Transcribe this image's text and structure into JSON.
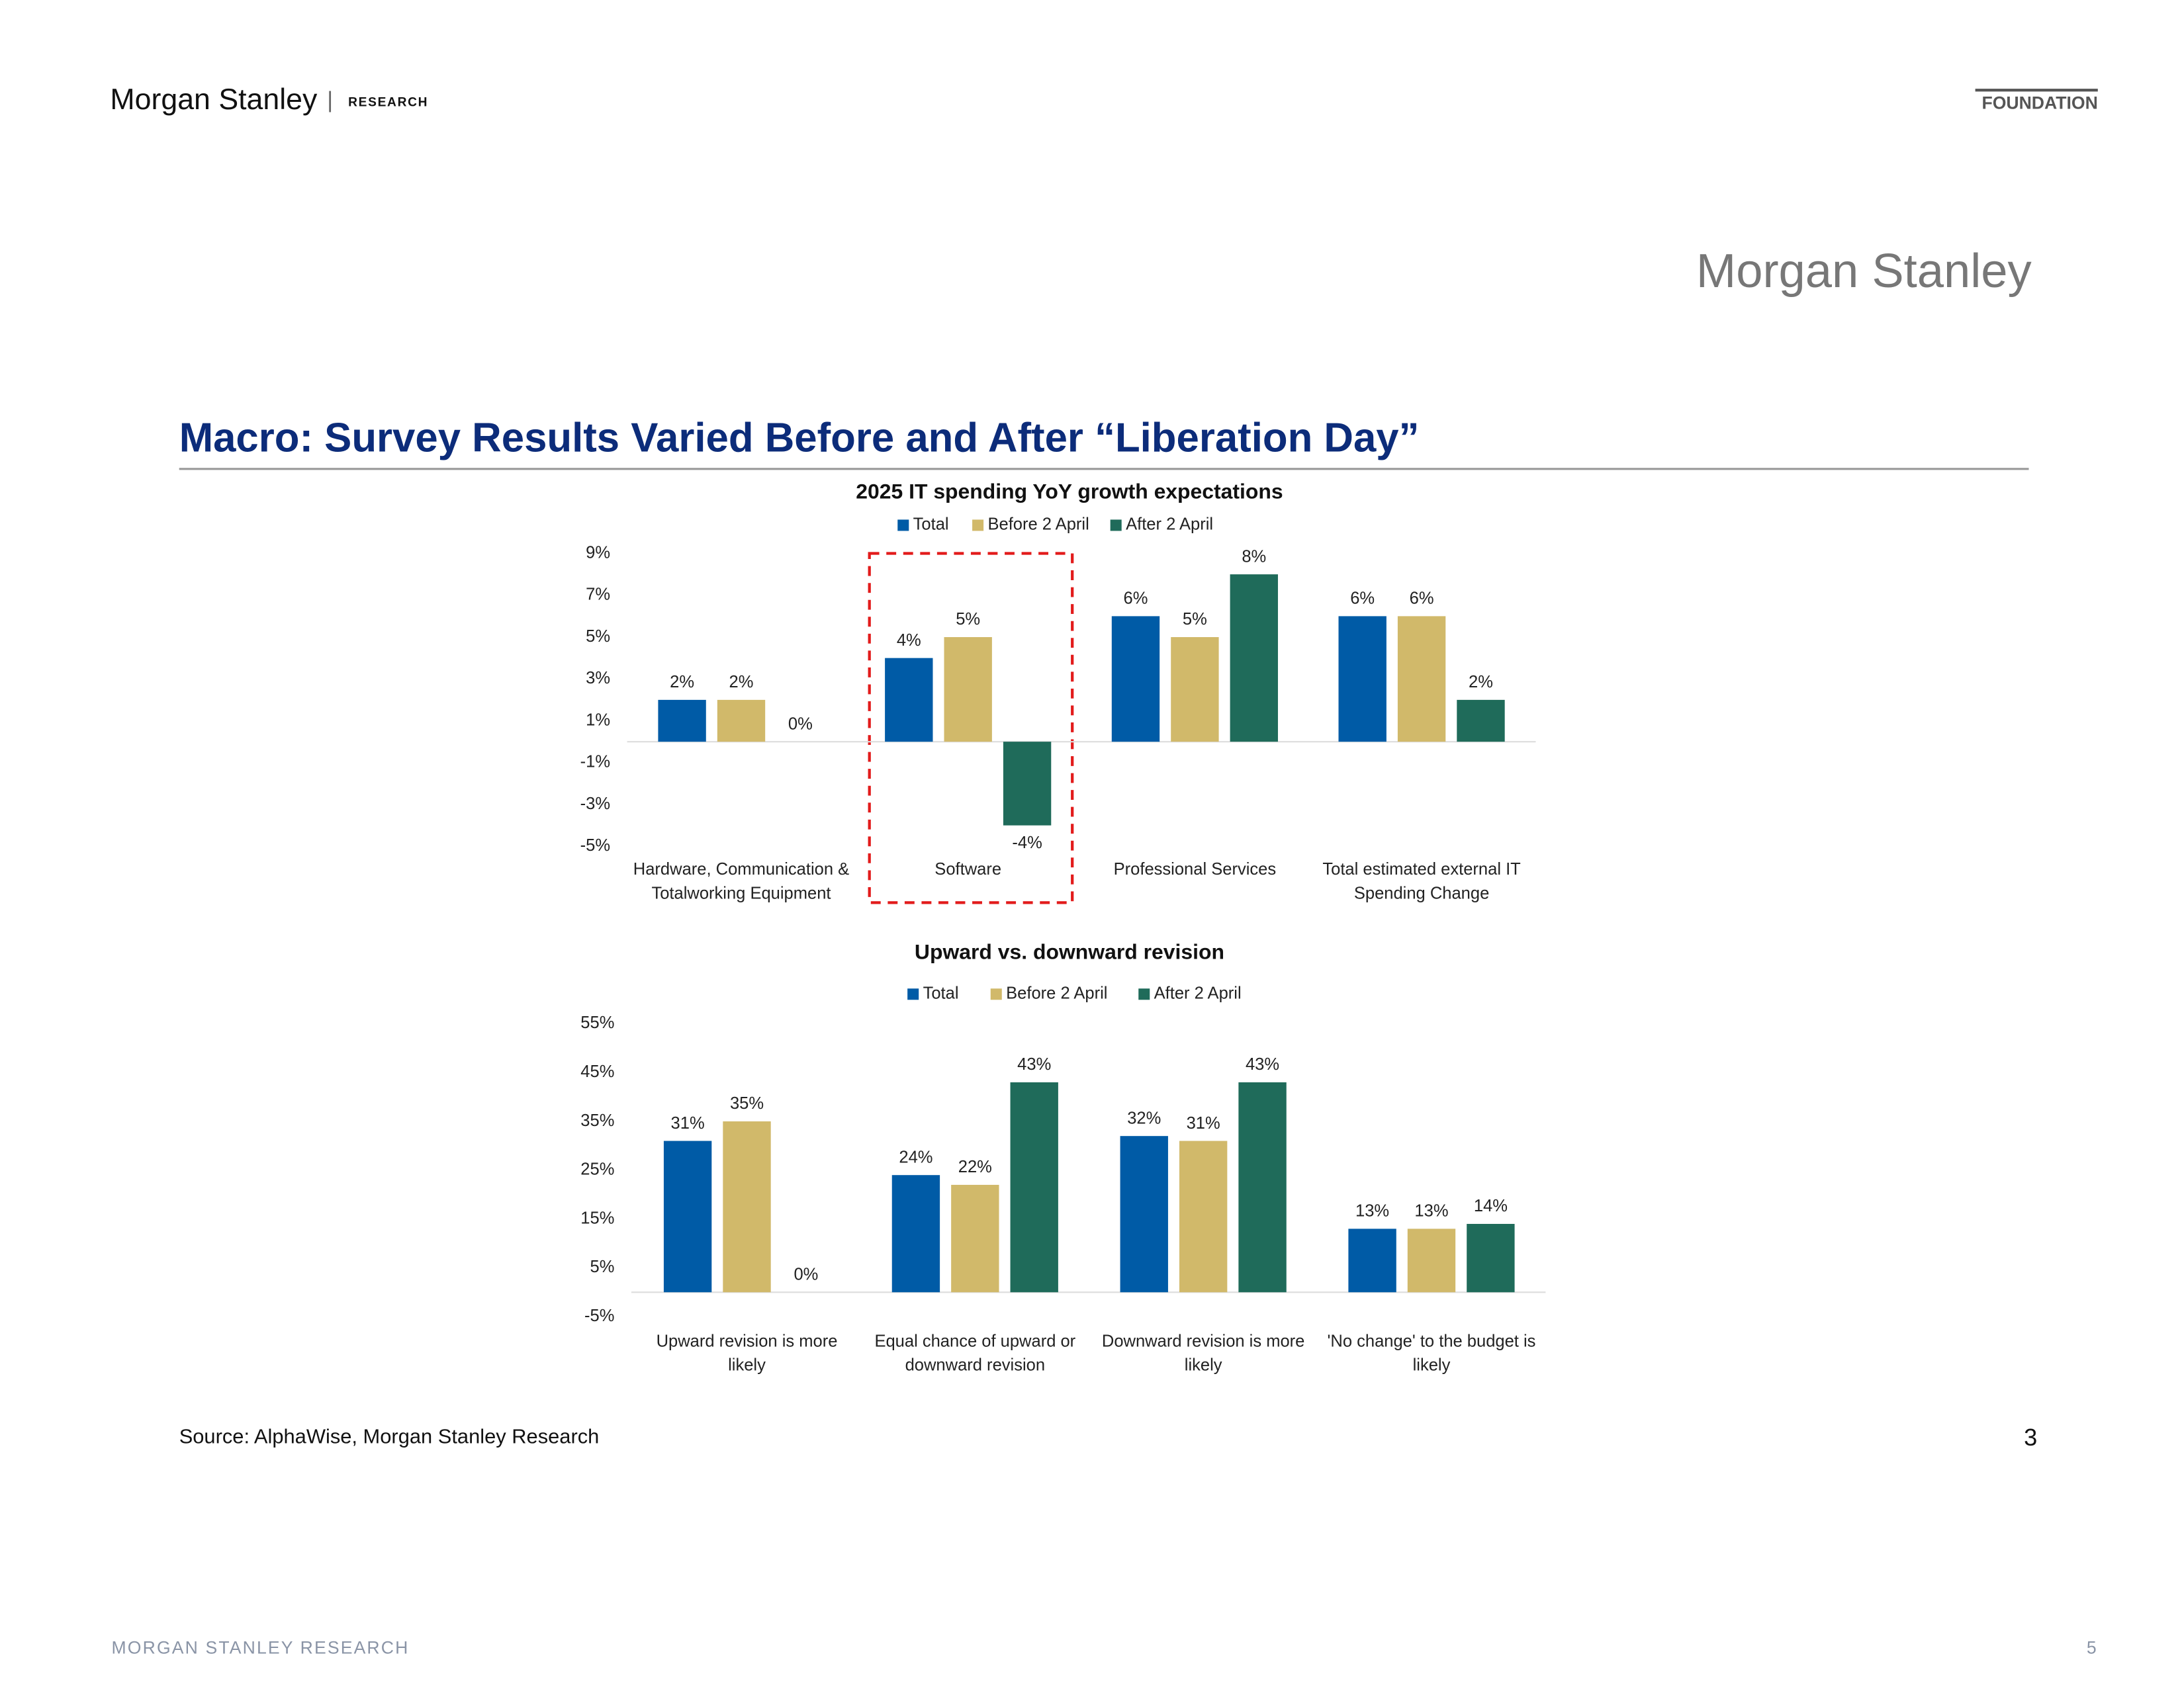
{
  "header": {
    "brand": "Morgan Stanley",
    "separator": "|",
    "section": "RESEARCH",
    "tag": "FOUNDATION",
    "logo": "Morgan Stanley"
  },
  "title": "Macro: Survey Results Varied Before and After “Liberation Day”",
  "chart_data": [
    {
      "type": "bar",
      "title": "2025 IT spending YoY growth expectations",
      "categories": [
        [
          "Hardware, Communication &",
          "Totalworking Equipment"
        ],
        [
          "Software"
        ],
        [
          "Professional Services"
        ],
        [
          "Total estimated external IT",
          "Spending Change"
        ]
      ],
      "series": [
        {
          "name": "Total",
          "color": "#005ba6",
          "values": [
            2,
            4,
            6,
            6
          ],
          "value_labels": [
            "2%",
            "4%",
            "6%",
            "6%"
          ]
        },
        {
          "name": "Before 2 April",
          "color": "#d1b96a",
          "values": [
            2,
            5,
            5,
            6
          ],
          "value_labels": [
            "2%",
            "5%",
            "5%",
            "6%"
          ]
        },
        {
          "name": "After 2 April",
          "color": "#1f6b5a",
          "values": [
            0,
            -4,
            8,
            2
          ],
          "value_labels": [
            "0%",
            "-4%",
            "8%",
            "2%"
          ]
        }
      ],
      "ylim": [
        -5,
        9
      ],
      "yticks": [
        {
          "value": -5,
          "label": "-5%"
        },
        {
          "value": -3,
          "label": "-3%"
        },
        {
          "value": -1,
          "label": "-1%"
        },
        {
          "value": 1,
          "label": "1%"
        },
        {
          "value": 3,
          "label": "3%"
        },
        {
          "value": 5,
          "label": "5%"
        },
        {
          "value": 7,
          "label": "7%"
        },
        {
          "value": 9,
          "label": "9%"
        }
      ],
      "legend": "top"
    },
    {
      "type": "bar",
      "title": "Upward vs. downward revision",
      "categories": [
        [
          "Upward revision is more",
          "likely"
        ],
        [
          "Equal chance of upward or",
          "downward revision"
        ],
        [
          "Downward revision is more",
          "likely"
        ],
        [
          "'No change' to the budget is",
          "likely"
        ]
      ],
      "series": [
        {
          "name": "Total",
          "color": "#005ba6",
          "values": [
            31,
            24,
            32,
            13
          ],
          "value_labels": [
            "31%",
            "24%",
            "32%",
            "13%"
          ]
        },
        {
          "name": "Before 2 April",
          "color": "#d1b96a",
          "values": [
            35,
            22,
            31,
            13
          ],
          "value_labels": [
            "35%",
            "22%",
            "31%",
            "13%"
          ]
        },
        {
          "name": "After 2 April",
          "color": "#1f6b5a",
          "values": [
            0,
            43,
            43,
            14
          ],
          "value_labels": [
            "0%",
            "43%",
            "43%",
            "14%"
          ]
        }
      ],
      "ylim": [
        -5,
        55
      ],
      "yticks": [
        {
          "value": -5,
          "label": "-5%"
        },
        {
          "value": 5,
          "label": "5%"
        },
        {
          "value": 15,
          "label": "15%"
        },
        {
          "value": 25,
          "label": "25%"
        },
        {
          "value": 35,
          "label": "35%"
        },
        {
          "value": 45,
          "label": "45%"
        },
        {
          "value": 55,
          "label": "55%"
        }
      ],
      "legend": "top"
    }
  ],
  "source": "Source: AlphaWise, Morgan Stanley Research",
  "slide_number": "3",
  "footer": {
    "text": "MORGAN STANLEY RESEARCH",
    "page": "5"
  }
}
